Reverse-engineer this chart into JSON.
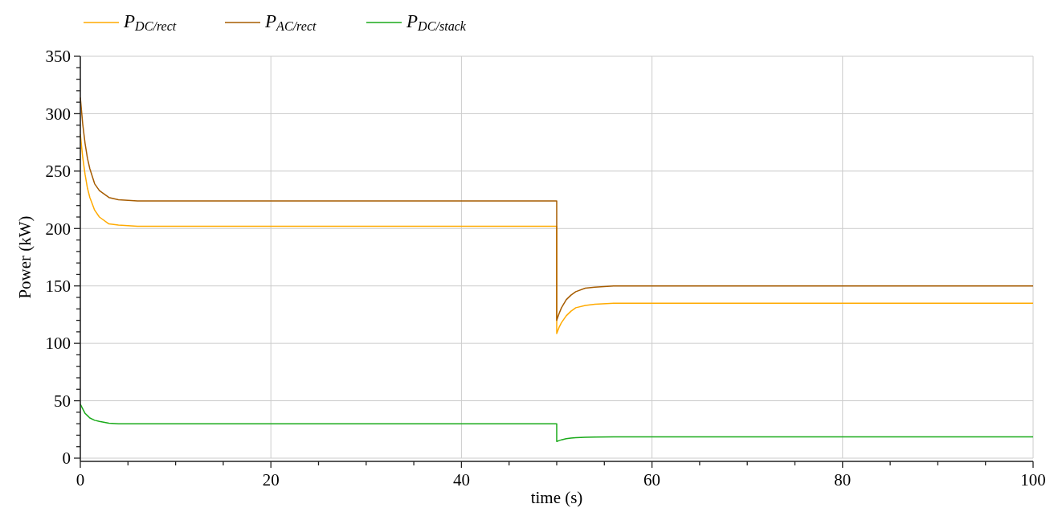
{
  "chart_data": {
    "type": "line",
    "xlabel": "time (s)",
    "ylabel": "Power (kW)",
    "x": [
      0,
      0.25,
      0.5,
      0.75,
      1,
      1.5,
      2,
      3,
      4,
      6,
      50,
      50,
      50.25,
      50.5,
      51,
      51.5,
      52,
      53,
      54,
      56,
      100
    ],
    "series": [
      {
        "name": "P$_{DC/rect}$",
        "color": "#ffaa00",
        "values": [
          282,
          262,
          247,
          235,
          227,
          216,
          210,
          204,
          203,
          202,
          202,
          108.5,
          114,
          118,
          124,
          128,
          131,
          133,
          134,
          135,
          135
        ]
      },
      {
        "name": "P$_{AC/rect}$",
        "color": "#a65c00",
        "values": [
          314,
          291,
          274,
          261,
          252,
          239,
          233,
          227,
          225,
          224,
          224,
          120,
          126,
          131,
          138,
          142,
          145,
          148,
          149,
          150,
          150
        ]
      },
      {
        "name": "P$_{DC/stack}$",
        "color": "#1aaa1a",
        "values": [
          47,
          43,
          39,
          37,
          35,
          33,
          32,
          30.5,
          30,
          30,
          30,
          14.5,
          15.3,
          16,
          16.9,
          17.5,
          17.9,
          18.2,
          18.4,
          18.5,
          18.5
        ]
      }
    ],
    "xlim": [
      0,
      100
    ],
    "ylim": [
      0,
      350
    ],
    "xticks": [
      0,
      {
        "value": 5,
        "label": null
      },
      {
        "value": 10,
        "label": null
      },
      {
        "value": 15,
        "label": null
      },
      20,
      {
        "value": 25,
        "label": null
      },
      {
        "value": 30,
        "label": null
      },
      {
        "value": 35,
        "label": null
      },
      40,
      {
        "value": 45,
        "label": null
      },
      {
        "value": 50,
        "label": null
      },
      {
        "value": 55,
        "label": null
      },
      60,
      {
        "value": 65,
        "label": null
      },
      {
        "value": 70,
        "label": null
      },
      {
        "value": 75,
        "label": null
      },
      80,
      {
        "value": 85,
        "label": null
      },
      {
        "value": 90,
        "label": null
      },
      {
        "value": 95,
        "label": null
      },
      100
    ],
    "yticks": [
      0,
      {
        "value": 10,
        "label": null
      },
      {
        "value": 20,
        "label": null
      },
      {
        "value": 30,
        "label": null
      },
      {
        "value": 40,
        "label": null
      },
      50,
      {
        "value": 60,
        "label": null
      },
      {
        "value": 70,
        "label": null
      },
      {
        "value": 80,
        "label": null
      },
      {
        "value": 90,
        "label": null
      },
      100,
      {
        "value": 110,
        "label": null
      },
      {
        "value": 120,
        "label": null
      },
      {
        "value": 130,
        "label": null
      },
      {
        "value": 140,
        "label": null
      },
      150,
      {
        "value": 160,
        "label": null
      },
      {
        "value": 170,
        "label": null
      },
      {
        "value": 180,
        "label": null
      },
      {
        "value": 190,
        "label": null
      },
      200,
      {
        "value": 210,
        "label": null
      },
      {
        "value": 220,
        "label": null
      },
      {
        "value": 230,
        "label": null
      },
      {
        "value": 240,
        "label": null
      },
      250,
      {
        "value": 260,
        "label": null
      },
      {
        "value": 270,
        "label": null
      },
      {
        "value": 280,
        "label": null
      },
      {
        "value": 290,
        "label": null
      },
      300,
      {
        "value": 310,
        "label": null
      },
      {
        "value": 320,
        "label": null
      },
      {
        "value": 330,
        "label": null
      },
      {
        "value": 340,
        "label": null
      },
      350
    ],
    "grid": true,
    "legend": "top left",
    "marker": "none",
    "line_style": "solid"
  }
}
